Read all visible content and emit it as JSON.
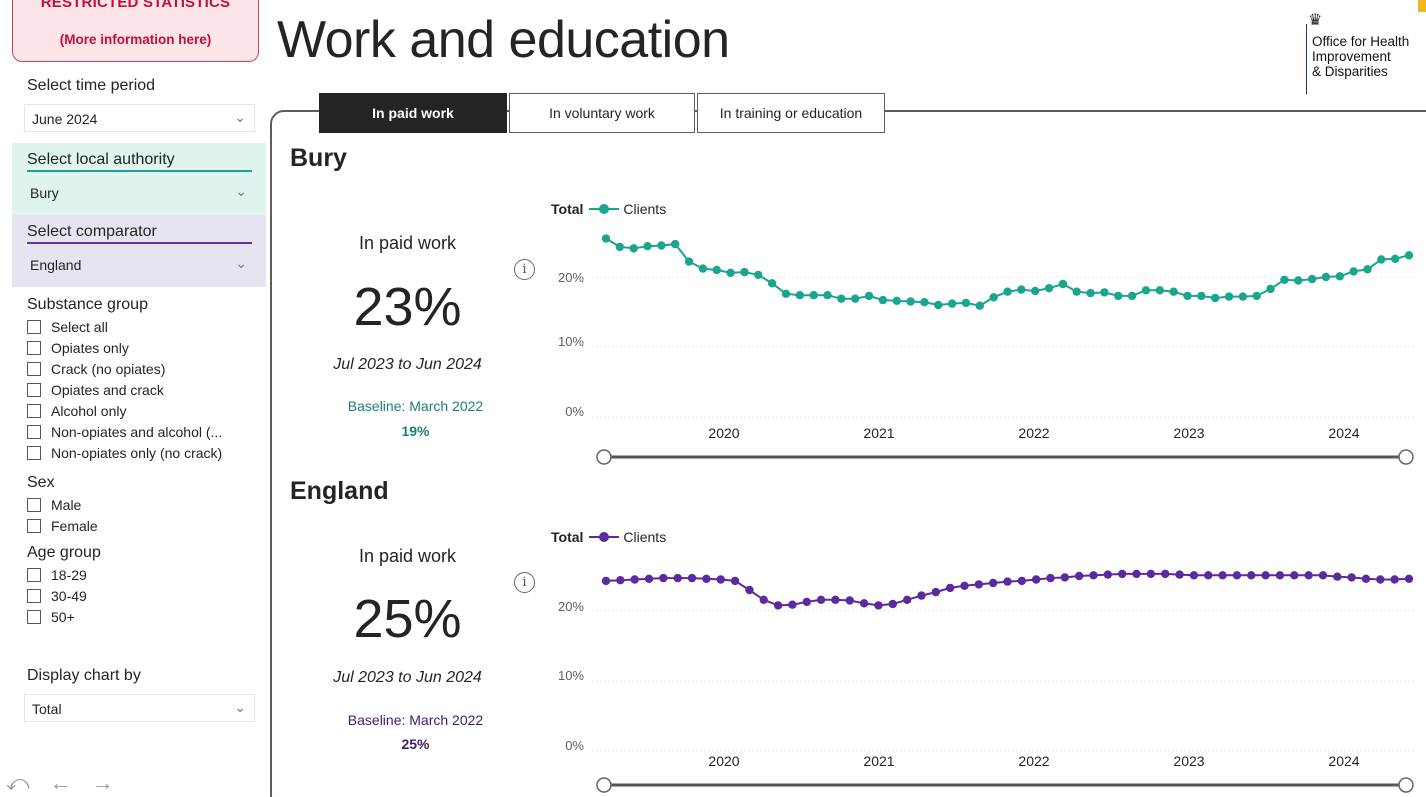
{
  "sidebar": {
    "restricted_line1": "RESTRICTED STATISTICS",
    "restricted_line2": "(More information here)",
    "time_period_label": "Select time period",
    "time_period_value": "June 2024",
    "local_authority_label": "Select local authority",
    "local_authority_value": "Bury",
    "comparator_label": "Select comparator",
    "comparator_value": "England",
    "substance_group": {
      "title": "Substance group",
      "options": [
        "Select all",
        "Opiates only",
        "Crack (no opiates)",
        "Opiates and crack",
        "Alcohol only",
        "Non-opiates and alcohol (...",
        "Non-opiates only (no crack)"
      ]
    },
    "sex": {
      "title": "Sex",
      "options": [
        "Male",
        "Female"
      ]
    },
    "age_group": {
      "title": "Age group",
      "options": [
        "18-29",
        "30-49",
        "50+"
      ]
    },
    "display_chart_label": "Display chart by",
    "display_chart_value": "Total",
    "nav": {
      "undo": "⤺",
      "back": "←",
      "forward": "→"
    }
  },
  "header": {
    "title": "Work and education",
    "logo_lines": [
      "Office for Health",
      "Improvement",
      "& Disparities"
    ]
  },
  "tabs": [
    {
      "label": "In paid work",
      "active": true
    },
    {
      "label": "In voluntary work",
      "active": false
    },
    {
      "label": "In training or education",
      "active": false
    }
  ],
  "colors": {
    "bury": "#1aa58f",
    "england": "#5b2a9e"
  },
  "bury": {
    "region": "Bury",
    "kpi_label": "In paid work",
    "kpi_value": "23%",
    "period": "Jul 2023 to Jun 2024",
    "baseline_label": "Baseline: March 2022",
    "baseline_value": "19%"
  },
  "england": {
    "region": "England",
    "kpi_label": "In paid work",
    "kpi_value": "25%",
    "period": "Jul 2023 to Jun 2024",
    "baseline_label": "Baseline: March 2022",
    "baseline_value": "25%"
  },
  "chart_data": [
    {
      "type": "line",
      "legend_title": "Total",
      "series": [
        {
          "name": "Clients",
          "values": [
            25.5,
            24.3,
            24.1,
            24.4,
            24.5,
            24.7,
            22.2,
            21.2,
            21.0,
            20.6,
            20.7,
            20.3,
            19.1,
            17.6,
            17.4,
            17.4,
            17.4,
            16.9,
            16.9,
            17.3,
            16.7,
            16.6,
            16.5,
            16.4,
            16.0,
            16.2,
            16.3,
            15.9,
            17.1,
            17.9,
            18.2,
            18.0,
            18.4,
            19.0,
            17.9,
            17.7,
            17.8,
            17.3,
            17.3,
            18.1,
            18.1,
            17.9,
            17.3,
            17.3,
            17.0,
            17.2,
            17.2,
            17.3,
            18.3,
            19.6,
            19.5,
            19.7,
            20.0,
            20.1,
            20.8,
            21.1,
            22.5,
            22.6,
            23.1
          ]
        }
      ],
      "x_tick_labels": [
        "2020",
        "2021",
        "2022",
        "2023",
        "2024"
      ],
      "y_tick_labels": [
        "0%",
        "10%",
        "20%"
      ],
      "ylim": [
        0,
        27
      ],
      "grid": true
    },
    {
      "type": "line",
      "legend_title": "Total",
      "series": [
        {
          "name": "Clients",
          "values": [
            24.3,
            24.4,
            24.5,
            24.6,
            24.7,
            24.7,
            24.7,
            24.6,
            24.5,
            24.3,
            23.0,
            21.6,
            20.8,
            20.9,
            21.3,
            21.6,
            21.6,
            21.5,
            21.1,
            20.8,
            21.0,
            21.6,
            22.2,
            22.7,
            23.3,
            23.6,
            23.8,
            24.0,
            24.2,
            24.3,
            24.5,
            24.7,
            24.8,
            25.0,
            25.1,
            25.2,
            25.3,
            25.3,
            25.3,
            25.3,
            25.2,
            25.1,
            25.1,
            25.1,
            25.1,
            25.1,
            25.1,
            25.1,
            25.1,
            25.1,
            25.1,
            24.9,
            24.8,
            24.6,
            24.5,
            24.5,
            24.6
          ]
        }
      ],
      "x_tick_labels": [
        "2020",
        "2021",
        "2022",
        "2023",
        "2024"
      ],
      "y_tick_labels": [
        "0%",
        "10%",
        "20%"
      ],
      "ylim": [
        0,
        27
      ],
      "grid": true
    }
  ]
}
